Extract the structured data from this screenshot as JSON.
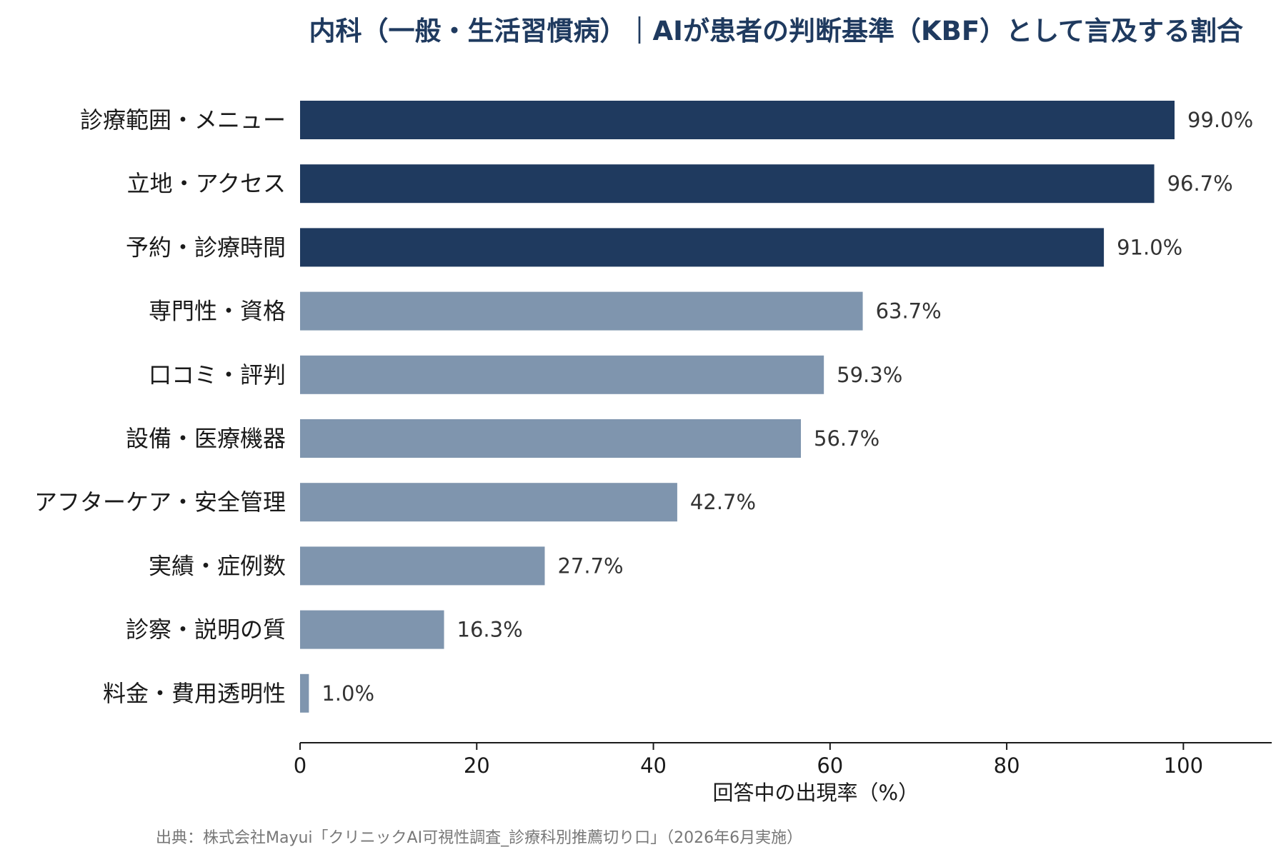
{
  "chart_data": {
    "type": "bar",
    "orientation": "horizontal",
    "title": "内科（一般・生活習慣病）｜AIが患者の判断基準（KBF）として言及する割合",
    "xlabel": "回答中の出現率（%）",
    "ylabel": "",
    "xlim": [
      0,
      110
    ],
    "xticks": [
      0,
      20,
      40,
      60,
      80,
      100
    ],
    "grid": false,
    "categories": [
      "診療範囲・メニュー",
      "立地・アクセス",
      "予約・診療時間",
      "専門性・資格",
      "口コミ・評判",
      "設備・医療機器",
      "アフターケア・安全管理",
      "実績・症例数",
      "診察・説明の質",
      "料金・費用透明性"
    ],
    "values": [
      99.0,
      96.7,
      91.0,
      63.7,
      59.3,
      56.7,
      42.7,
      27.7,
      16.3,
      1.0
    ],
    "value_labels": [
      "99.0%",
      "96.7%",
      "91.0%",
      "63.7%",
      "59.3%",
      "56.7%",
      "42.7%",
      "27.7%",
      "16.3%",
      "1.0%"
    ],
    "highlight_count": 3,
    "colors": {
      "highlight": "#1f3a5f",
      "normal": "#7f95ae"
    }
  },
  "source_note": "出典：株式会社Mayui「クリニックAI可視性調査_診療科別推薦切り口」（2026年6月実施）"
}
